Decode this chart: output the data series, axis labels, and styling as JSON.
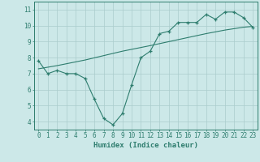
{
  "line1_x": [
    0,
    1,
    2,
    3,
    4,
    5,
    6,
    7,
    8,
    9,
    10,
    11,
    12,
    13,
    14,
    15,
    16,
    17,
    18,
    19,
    20,
    21,
    22,
    23
  ],
  "line1_y": [
    7.8,
    7.0,
    7.2,
    7.0,
    7.0,
    6.7,
    5.4,
    4.2,
    3.8,
    4.5,
    6.3,
    8.0,
    8.4,
    9.5,
    9.65,
    10.2,
    10.2,
    10.2,
    10.7,
    10.4,
    10.85,
    10.85,
    10.5,
    9.9
  ],
  "line2_x": [
    0,
    2,
    5,
    9,
    12,
    14,
    16,
    18,
    20,
    22,
    23
  ],
  "line2_y": [
    7.3,
    7.5,
    7.85,
    8.4,
    8.75,
    9.0,
    9.25,
    9.5,
    9.72,
    9.9,
    9.95
  ],
  "line_color": "#2e7d6e",
  "bg_color": "#cce8e8",
  "grid_color": "#aacccc",
  "xlabel": "Humidex (Indice chaleur)",
  "xlim": [
    -0.5,
    23.5
  ],
  "ylim": [
    3.5,
    11.5
  ],
  "xticks": [
    0,
    1,
    2,
    3,
    4,
    5,
    6,
    7,
    8,
    9,
    10,
    11,
    12,
    13,
    14,
    15,
    16,
    17,
    18,
    19,
    20,
    21,
    22,
    23
  ],
  "yticks": [
    4,
    5,
    6,
    7,
    8,
    9,
    10,
    11
  ],
  "xlabel_fontsize": 6.5,
  "tick_fontsize": 5.5
}
